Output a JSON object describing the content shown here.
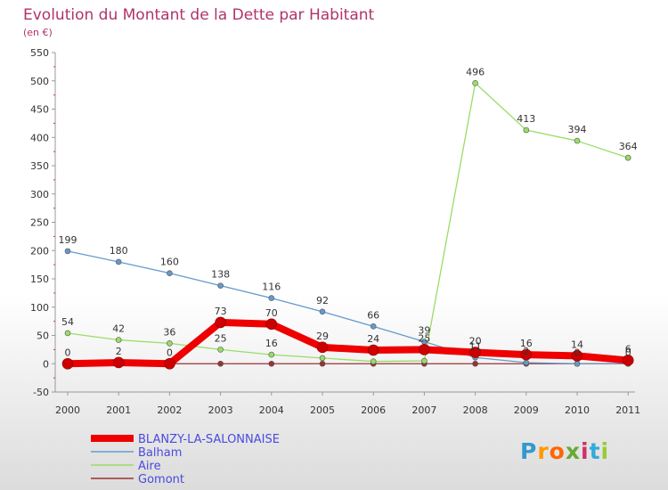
{
  "chart_data": {
    "type": "line",
    "title": "Evolution du Montant de la Dette par Habitant",
    "subtitle": "(en €)",
    "categories": [
      "2000",
      "2001",
      "2002",
      "2003",
      "2004",
      "2005",
      "2006",
      "2007",
      "2008",
      "2009",
      "2010",
      "2011"
    ],
    "ylim": [
      -50,
      550
    ],
    "y_ticks": [
      -50,
      0,
      50,
      100,
      150,
      200,
      250,
      300,
      350,
      400,
      450,
      500,
      550
    ],
    "grid": false,
    "legend_position": "bottom-left",
    "series": [
      {
        "name": "BLANZY-LA-SALONNAISE",
        "color": "#ee0000",
        "emphasis": true,
        "values": [
          0,
          2,
          0,
          73,
          70,
          29,
          24,
          25,
          20,
          16,
          14,
          6
        ],
        "labels": [
          "0",
          "2",
          "0",
          "73",
          "70",
          "29",
          "24",
          "25",
          "20",
          "16",
          "14",
          "6"
        ]
      },
      {
        "name": "Balham",
        "color": "#6699cc",
        "values": [
          199,
          180,
          160,
          138,
          116,
          92,
          66,
          39,
          11,
          2,
          0,
          0
        ],
        "labels": [
          "199",
          "180",
          "160",
          "138",
          "116",
          "92",
          "66",
          "39",
          "11",
          "2",
          "0",
          "0"
        ]
      },
      {
        "name": "Aire",
        "color": "#99dd66",
        "values": [
          54,
          42,
          36,
          25,
          16,
          10,
          4,
          5,
          496,
          413,
          394,
          364
        ],
        "labels": [
          "54",
          "42",
          "36",
          "25",
          "16",
          "",
          "",
          "",
          "496",
          "413",
          "394",
          "364"
        ]
      },
      {
        "name": "Gomont",
        "color": "#993333",
        "values": [
          0,
          0,
          0,
          0,
          0,
          0,
          0,
          0,
          0,
          0,
          0,
          0
        ],
        "labels": []
      }
    ]
  },
  "logo": {
    "text": "Proxiti",
    "colors": [
      "#3399cc",
      "#ff9900",
      "#ff6600",
      "#66aa33",
      "#cc3366",
      "#33aadd",
      "#99cc33"
    ]
  }
}
